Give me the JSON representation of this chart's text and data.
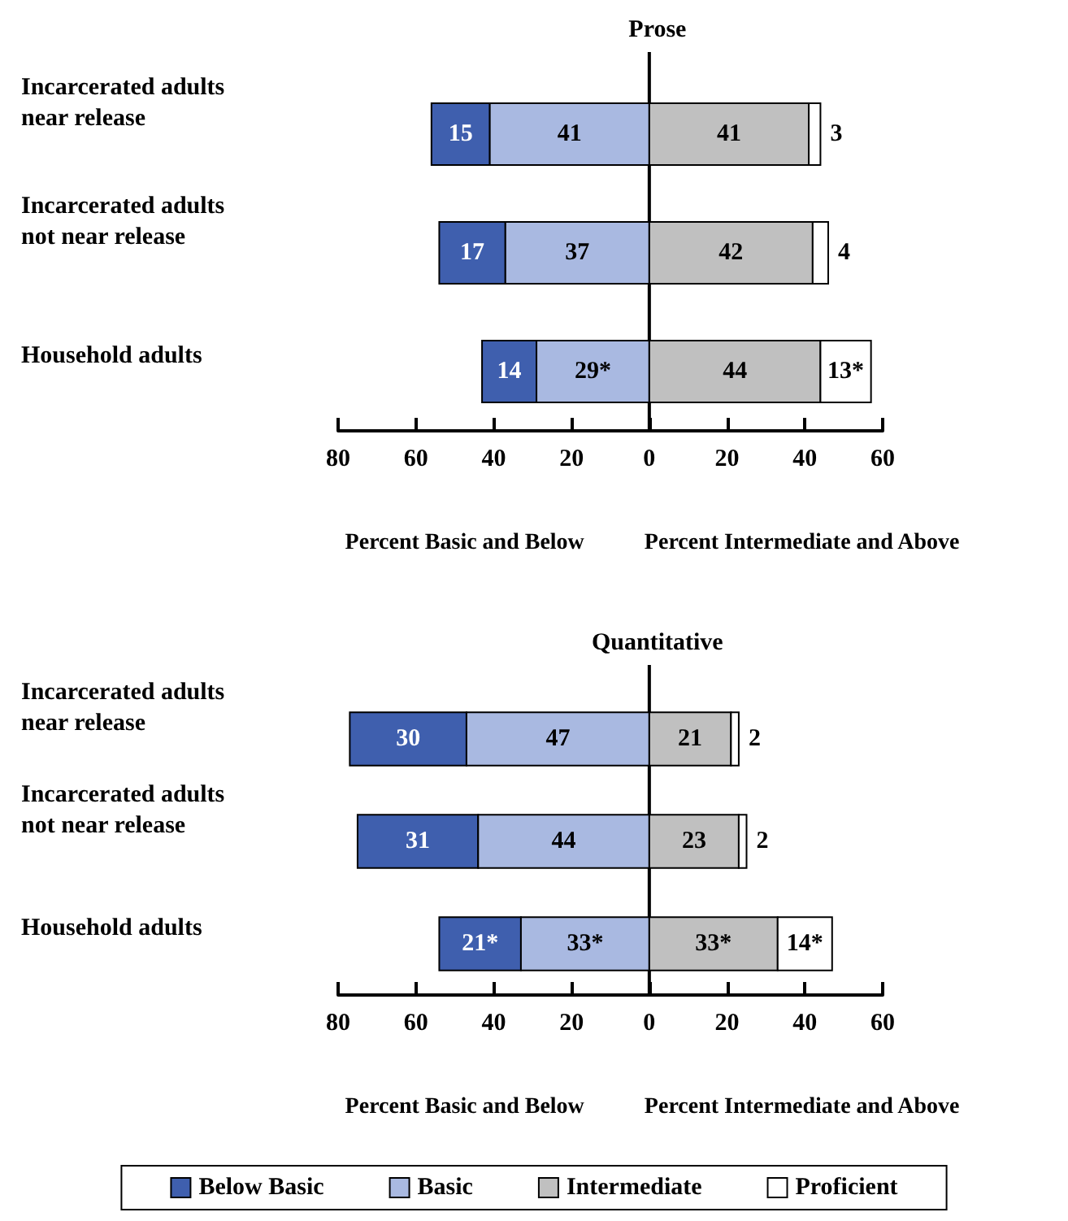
{
  "chart_data": [
    {
      "type": "bar",
      "title": "Prose",
      "orientation": "horizontal",
      "categories": [
        "Incarcerated adults near release",
        "Incarcerated adults not near release",
        "Household adults"
      ],
      "series": [
        {
          "color": "#3f5fae",
          "base": [
            -56,
            -54,
            -43
          ],
          "values": [
            15,
            17,
            14
          ],
          "value_labels": [
            "15",
            "17",
            "14"
          ]
        },
        {
          "color": "#a9b9e1",
          "base": [
            -41,
            -37,
            -29
          ],
          "values": [
            41,
            37,
            29
          ],
          "value_labels": [
            "41",
            "37",
            "29*"
          ]
        },
        {
          "color": "#c0c0c0",
          "base": [
            0,
            0,
            0
          ],
          "values": [
            41,
            42,
            44
          ],
          "value_labels": [
            "41",
            "42",
            "44"
          ]
        },
        {
          "color": "#ffffff",
          "base": [
            41,
            42,
            44
          ],
          "values": [
            3,
            4,
            13
          ],
          "value_labels": [
            "3",
            "4",
            "13*"
          ]
        }
      ],
      "xlim": [
        -80,
        60
      ],
      "xticks": [
        {
          "value": -80,
          "label": "80"
        },
        {
          "value": -60,
          "label": "60"
        },
        {
          "value": -40,
          "label": "40"
        },
        {
          "value": -20,
          "label": "20"
        },
        0,
        20,
        40,
        60
      ],
      "annotations": [
        "Percent Basic and Below",
        "Percent Intermediate and Above"
      ]
    },
    {
      "type": "bar",
      "title": "Quantitative",
      "orientation": "horizontal",
      "categories": [
        "Incarcerated adults near release",
        "Incarcerated adults not near release",
        "Household adults"
      ],
      "series": [
        {
          "name": "Below Basic",
          "color": "#3f5fae",
          "base": [
            -77,
            -75,
            -54
          ],
          "values": [
            30,
            31,
            21
          ],
          "value_labels": [
            "30",
            "31",
            "21*"
          ]
        },
        {
          "name": "Basic",
          "color": "#a9b9e1",
          "base": [
            -47,
            -44,
            -33
          ],
          "values": [
            47,
            44,
            33
          ],
          "value_labels": [
            "47",
            "44",
            "33*"
          ]
        },
        {
          "name": "Intermediate",
          "color": "#c0c0c0",
          "base": [
            0,
            0,
            0
          ],
          "values": [
            21,
            23,
            33
          ],
          "value_labels": [
            "21",
            "23",
            "33*"
          ]
        },
        {
          "name": "Proficient",
          "color": "#ffffff",
          "base": [
            21,
            23,
            33
          ],
          "values": [
            2,
            2,
            14
          ],
          "value_labels": [
            "2",
            "2",
            "14*"
          ]
        }
      ],
      "xlim": [
        -80,
        60
      ],
      "xticks": [
        {
          "value": -80,
          "label": "80"
        },
        {
          "value": -60,
          "label": "60"
        },
        {
          "value": -40,
          "label": "40"
        },
        {
          "value": -20,
          "label": "20"
        },
        0,
        20,
        40,
        60
      ],
      "annotations": [
        "Percent Basic and Below",
        "Percent Intermediate and Above"
      ],
      "legend": "bottom"
    }
  ]
}
